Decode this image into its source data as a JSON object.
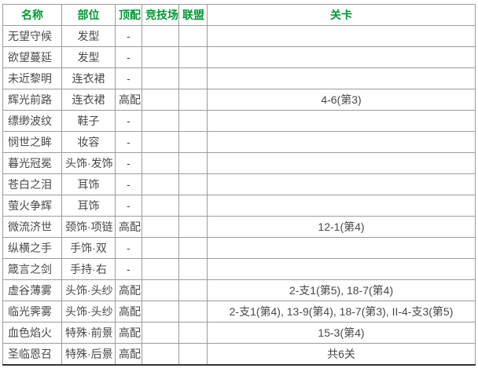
{
  "chart_data": {
    "type": "table",
    "columns": [
      {
        "key": "name",
        "label": "名称"
      },
      {
        "key": "part",
        "label": "部位"
      },
      {
        "key": "top",
        "label": "顶配"
      },
      {
        "key": "arena",
        "label": "竞技场"
      },
      {
        "key": "union",
        "label": "联盟"
      },
      {
        "key": "stage",
        "label": "关卡"
      }
    ],
    "rows": [
      {
        "name": "无望守候",
        "part": "发型",
        "top": "-",
        "arena": "",
        "union": "",
        "stage": ""
      },
      {
        "name": "欲望蔓延",
        "part": "发型",
        "top": "-",
        "arena": "",
        "union": "",
        "stage": ""
      },
      {
        "name": "未近黎明",
        "part": "连衣裙",
        "top": "-",
        "arena": "",
        "union": "",
        "stage": ""
      },
      {
        "name": "辉光前路",
        "part": "连衣裙",
        "top": "高配",
        "arena": "",
        "union": "",
        "stage": "4-6(第3)"
      },
      {
        "name": "缥缈波纹",
        "part": "鞋子",
        "top": "-",
        "arena": "",
        "union": "",
        "stage": ""
      },
      {
        "name": "悯世之眸",
        "part": "妆容",
        "top": "-",
        "arena": "",
        "union": "",
        "stage": ""
      },
      {
        "name": "暮光冠冕",
        "part": "头饰·发饰",
        "top": "-",
        "arena": "",
        "union": "",
        "stage": ""
      },
      {
        "name": "苍白之泪",
        "part": "耳饰",
        "top": "-",
        "arena": "",
        "union": "",
        "stage": ""
      },
      {
        "name": "萤火争辉",
        "part": "耳饰",
        "top": "-",
        "arena": "",
        "union": "",
        "stage": ""
      },
      {
        "name": "微流济世",
        "part": "颈饰·项链",
        "top": "高配",
        "arena": "",
        "union": "",
        "stage": "12-1(第4)"
      },
      {
        "name": "纵横之手",
        "part": "手饰·双",
        "top": "-",
        "arena": "",
        "union": "",
        "stage": ""
      },
      {
        "name": "箴言之剑",
        "part": "手持·右",
        "top": "-",
        "arena": "",
        "union": "",
        "stage": ""
      },
      {
        "name": "虚谷薄雾",
        "part": "头饰·头纱",
        "top": "高配",
        "arena": "",
        "union": "",
        "stage": "2-支1(第5), 18-7(第4)"
      },
      {
        "name": "临光霁雾",
        "part": "头饰·头纱",
        "top": "高配",
        "arena": "",
        "union": "",
        "stage": "2-支1(第4), 13-9(第4), 18-7(第3), II-4-支3(第5)"
      },
      {
        "name": "血色焰火",
        "part": "特殊·前景",
        "top": "高配",
        "arena": "",
        "union": "",
        "stage": "15-3(第4)"
      },
      {
        "name": "圣临恩召",
        "part": "特殊·后景",
        "top": "高配",
        "arena": "",
        "union": "",
        "stage": "共6关"
      }
    ]
  },
  "colors": {
    "header_text": "#009933",
    "body_text": "#484848",
    "border": "#9b9b9b",
    "bottom_border": "#333333",
    "background": "#ffffff"
  }
}
